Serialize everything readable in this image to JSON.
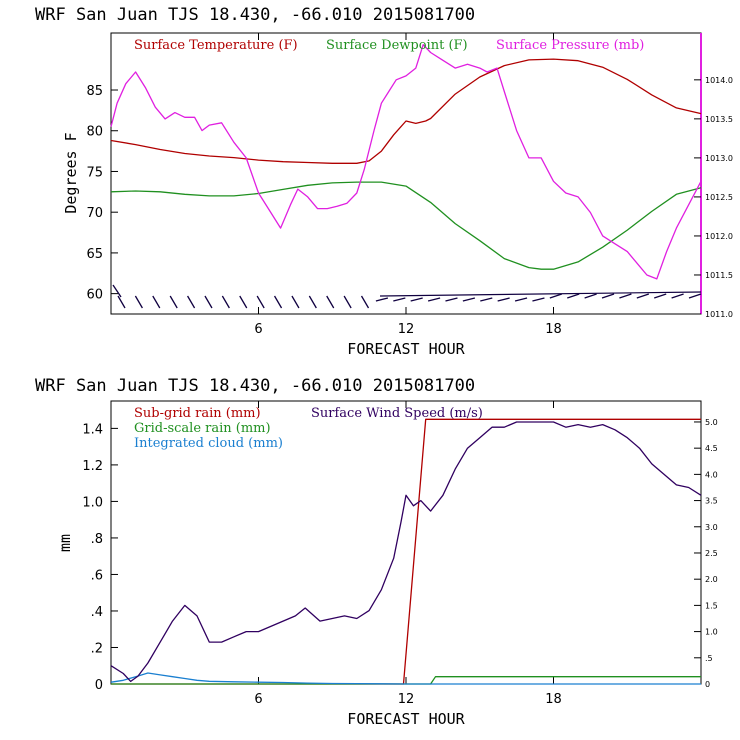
{
  "chart_data": [
    {
      "type": "line",
      "title": "WRF   San Juan TJS  18.430, -66.010  2015081700",
      "xlabel": "FORECAST HOUR",
      "ylabel": "Degrees F",
      "xlim": [
        0,
        24
      ],
      "ylim": [
        57.5,
        92
      ],
      "y2lim": [
        1011.0,
        1014.6
      ],
      "x_ticks": [
        6,
        12,
        18
      ],
      "y_ticks": [
        60,
        65,
        70,
        75,
        80,
        85
      ],
      "y2_ticks": [
        1011.0,
        1011.5,
        1012.0,
        1012.5,
        1013.0,
        1013.5,
        1014.0
      ],
      "y2_tick_labels": [
        "1011.0",
        "1011.5",
        "1012.0",
        "1012.5",
        "1013.0",
        "1013.5",
        "1014.0"
      ],
      "series": [
        {
          "name": "Surface Temperature (F)",
          "color": "#b00000",
          "axis": "left",
          "x": [
            0,
            1,
            2,
            3,
            4,
            5,
            6,
            7,
            8,
            9,
            10,
            10.5,
            11,
            11.5,
            12,
            12.4,
            12.8,
            13,
            14,
            15,
            16,
            17,
            18,
            19,
            20,
            21,
            22,
            23,
            24
          ],
          "values": [
            78.8,
            78.3,
            77.7,
            77.2,
            76.9,
            76.7,
            76.4,
            76.2,
            76.1,
            76.0,
            76.0,
            76.3,
            77.5,
            79.5,
            81.2,
            80.9,
            81.2,
            81.5,
            84.5,
            86.6,
            88.0,
            88.7,
            88.8,
            88.6,
            87.8,
            86.3,
            84.4,
            82.8,
            82.1
          ]
        },
        {
          "name": "Surface Dewpoint (F)",
          "color": "#209020",
          "axis": "left",
          "x": [
            0,
            1,
            2,
            3,
            4,
            5,
            6,
            7,
            8,
            9,
            10,
            11,
            12,
            13,
            14,
            15,
            16,
            17,
            17.5,
            18,
            19,
            20,
            21,
            22,
            23,
            24
          ],
          "values": [
            72.5,
            72.6,
            72.5,
            72.2,
            72.0,
            72.0,
            72.3,
            72.8,
            73.3,
            73.6,
            73.7,
            73.7,
            73.2,
            71.2,
            68.6,
            66.5,
            64.3,
            63.2,
            63.0,
            63.0,
            63.9,
            65.7,
            67.8,
            70.1,
            72.2,
            73.0
          ]
        },
        {
          "name": "Surface Pressure (mb)",
          "color": "#e020e0",
          "axis": "right",
          "x": [
            0,
            0.25,
            0.6,
            1,
            1.4,
            1.8,
            2.2,
            2.6,
            3,
            3.4,
            3.7,
            4,
            4.5,
            5,
            5.5,
            6,
            6.5,
            6.9,
            7.3,
            7.6,
            8,
            8.4,
            8.8,
            9.2,
            9.6,
            10,
            10.3,
            10.7,
            11,
            11.3,
            11.6,
            12,
            12.4,
            12.7,
            13,
            13.5,
            14,
            14.5,
            15,
            15.3,
            15.7,
            16,
            16.5,
            17,
            17.5,
            18,
            18.5,
            19,
            19.5,
            20,
            20.5,
            21,
            21.4,
            21.8,
            22.2,
            22.6,
            23,
            23.5,
            24
          ],
          "values": [
            1013.4,
            1013.7,
            1013.95,
            1014.1,
            1013.9,
            1013.65,
            1013.5,
            1013.58,
            1013.52,
            1013.52,
            1013.35,
            1013.42,
            1013.45,
            1013.2,
            1013.0,
            1012.55,
            1012.3,
            1012.1,
            1012.4,
            1012.6,
            1012.5,
            1012.35,
            1012.35,
            1012.38,
            1012.42,
            1012.55,
            1012.85,
            1013.35,
            1013.7,
            1013.85,
            1014.0,
            1014.05,
            1014.15,
            1014.45,
            1014.35,
            1014.25,
            1014.15,
            1014.2,
            1014.15,
            1014.1,
            1014.15,
            1013.85,
            1013.35,
            1013.0,
            1013.0,
            1012.7,
            1012.55,
            1012.5,
            1012.3,
            1012.0,
            1011.9,
            1011.8,
            1011.65,
            1011.5,
            1011.45,
            1011.8,
            1012.1,
            1012.4,
            1012.7
          ]
        }
      ],
      "wind_barbs": "row of short dark wind barbs along the bottom of the panel"
    },
    {
      "type": "line",
      "title": "WRF   San Juan TJS  18.430, -66.010  2015081700",
      "xlabel": "FORECAST HOUR",
      "ylabel": "mm",
      "xlim": [
        0,
        24
      ],
      "ylim": [
        0,
        1.55
      ],
      "y2lim": [
        0,
        5.4
      ],
      "x_ticks": [
        6,
        12,
        18
      ],
      "y_ticks": [
        0,
        0.2,
        0.4,
        0.6,
        0.8,
        1.0,
        1.2,
        1.4
      ],
      "y_tick_labels": [
        "0",
        ".2",
        ".4",
        ".6",
        ".8",
        "1.0",
        "1.2",
        "1.4"
      ],
      "y2_ticks": [
        0,
        0.5,
        1.0,
        1.5,
        2.0,
        2.5,
        3.0,
        3.5,
        4.0,
        4.5,
        5.0
      ],
      "y2_tick_labels": [
        "0",
        ".5",
        "1.0",
        "1.5",
        "2.0",
        "2.5",
        "3.0",
        "3.5",
        "4.0",
        "4.5",
        "5.0"
      ],
      "series": [
        {
          "name": "Sub-grid rain (mm)",
          "color": "#b00000",
          "axis": "left",
          "x": [
            0,
            11.9,
            12.8,
            24
          ],
          "values": [
            0,
            0,
            1.45,
            1.45
          ]
        },
        {
          "name": "Grid-scale rain (mm)",
          "color": "#209020",
          "axis": "left",
          "x": [
            0,
            13.0,
            13.2,
            24
          ],
          "values": [
            0,
            0,
            0.04,
            0.04
          ]
        },
        {
          "name": "Integrated cloud (mm)",
          "color": "#1a7fd0",
          "axis": "left",
          "x": [
            0,
            0.5,
            1,
            1.5,
            2,
            2.5,
            3,
            3.5,
            4,
            5,
            6,
            7,
            8,
            9,
            10,
            11,
            12,
            24
          ],
          "values": [
            0.01,
            0.02,
            0.04,
            0.06,
            0.05,
            0.04,
            0.03,
            0.02,
            0.015,
            0.012,
            0.01,
            0.008,
            0.005,
            0.003,
            0.002,
            0.001,
            0,
            0
          ]
        },
        {
          "name": "Surface Wind Speed (m/s)",
          "color": "#300060",
          "axis": "right",
          "x": [
            0,
            0.5,
            0.8,
            1.1,
            1.5,
            2,
            2.5,
            3,
            3.5,
            4,
            4.5,
            5,
            5.5,
            6,
            6.5,
            7,
            7.5,
            7.9,
            8.5,
            9,
            9.5,
            10,
            10.5,
            11,
            11.5,
            11.8,
            12,
            12.3,
            12.6,
            13,
            13.5,
            14,
            14.5,
            15,
            15.5,
            16,
            16.5,
            17,
            17.5,
            18,
            18.5,
            19,
            19.5,
            20,
            20.5,
            21,
            21.5,
            22,
            22.5,
            23,
            23.5,
            24
          ],
          "values": [
            0.35,
            0.2,
            0.05,
            0.15,
            0.4,
            0.8,
            1.2,
            1.5,
            1.3,
            0.8,
            0.8,
            0.9,
            1.0,
            1.0,
            1.1,
            1.2,
            1.3,
            1.45,
            1.2,
            1.25,
            1.3,
            1.25,
            1.4,
            1.8,
            2.4,
            3.1,
            3.6,
            3.4,
            3.5,
            3.3,
            3.6,
            4.1,
            4.5,
            4.7,
            4.9,
            4.9,
            5.0,
            5.0,
            5.0,
            5.0,
            4.9,
            4.95,
            4.9,
            4.95,
            4.85,
            4.7,
            4.5,
            4.2,
            4.0,
            3.8,
            3.75,
            3.6
          ]
        }
      ]
    }
  ]
}
